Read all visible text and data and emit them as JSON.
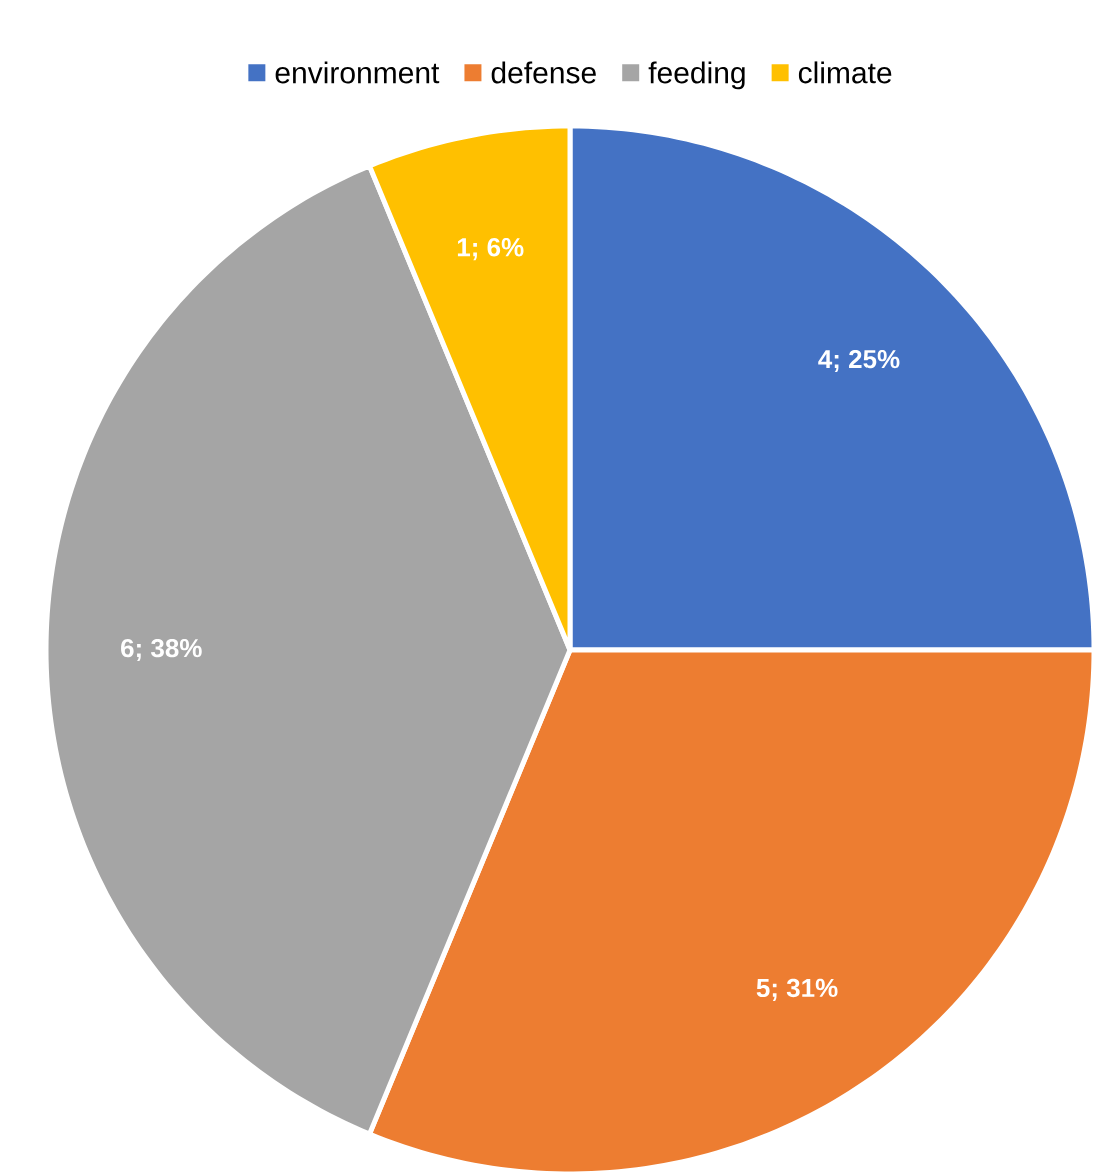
{
  "chart_data": {
    "type": "pie",
    "categories": [
      "environment",
      "defense",
      "feeding",
      "climate"
    ],
    "values": [
      4,
      5,
      6,
      1
    ],
    "colors": [
      "#4472c4",
      "#ed7d31",
      "#a5a5a5",
      "#ffc000"
    ],
    "value_labels": [
      "4; 25%",
      "5; 31%",
      "6; 38%",
      "1; 6%"
    ],
    "legend": "top"
  }
}
